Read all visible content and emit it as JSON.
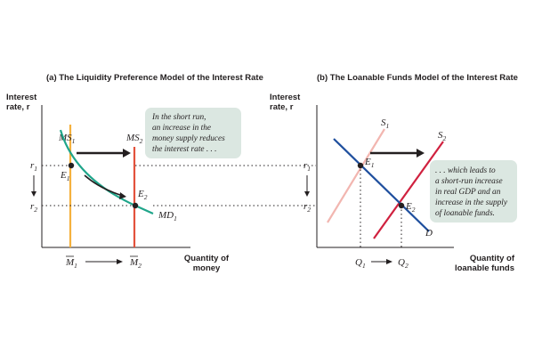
{
  "panel_a": {
    "title": "(a) The Liquidity Preference Model of the Interest Rate",
    "y_axis_label": [
      "Interest",
      "rate, r"
    ],
    "x_axis_label": [
      "Quantity of",
      "money"
    ],
    "curve_labels": {
      "ms1": "MS",
      "ms1_sub": "1",
      "ms2": "MS",
      "ms2_sub": "2",
      "md1": "MD",
      "md1_sub": "1"
    },
    "point_labels": {
      "e1": "E",
      "e1_sub": "1",
      "e2": "E",
      "e2_sub": "2"
    },
    "tick_labels": {
      "r1": "r",
      "r1_sub": "1",
      "r2": "r",
      "r2_sub": "2",
      "m1": "M",
      "m1_sub": "1",
      "m2": "M",
      "m2_sub": "2"
    },
    "note": [
      "In the short run,",
      "an increase in the",
      "money supply reduces",
      "the interest rate . . ."
    ]
  },
  "panel_b": {
    "title": "(b) The Loanable Funds Model of the Interest Rate",
    "y_axis_label": [
      "Interest",
      "rate, r"
    ],
    "x_axis_label": [
      "Quantity of",
      "loanable funds"
    ],
    "curve_labels": {
      "s1": "S",
      "s1_sub": "1",
      "s2": "S",
      "s2_sub": "2",
      "d": "D"
    },
    "point_labels": {
      "e1": "E",
      "e1_sub": "1",
      "e2": "E",
      "e2_sub": "2"
    },
    "tick_labels": {
      "r1": "r",
      "r1_sub": "1",
      "r2": "r",
      "r2_sub": "2",
      "q1": "Q",
      "q1_sub": "1",
      "q2": "Q",
      "q2_sub": "2"
    },
    "note": [
      ". . . which leads to",
      "a short-run increase",
      "in real GDP and an",
      "increase in the supply",
      "of loanable funds."
    ]
  },
  "colors": {
    "md_curve": "#1fa58a",
    "ms1_line": "#f5b13d",
    "ms2_line": "#e3523c",
    "s1_line": "#f2b6b0",
    "s2_line": "#d0213f",
    "d_line": "#1f4f9e",
    "note_bg": "#dbe7e1",
    "axis": "#231f20"
  }
}
